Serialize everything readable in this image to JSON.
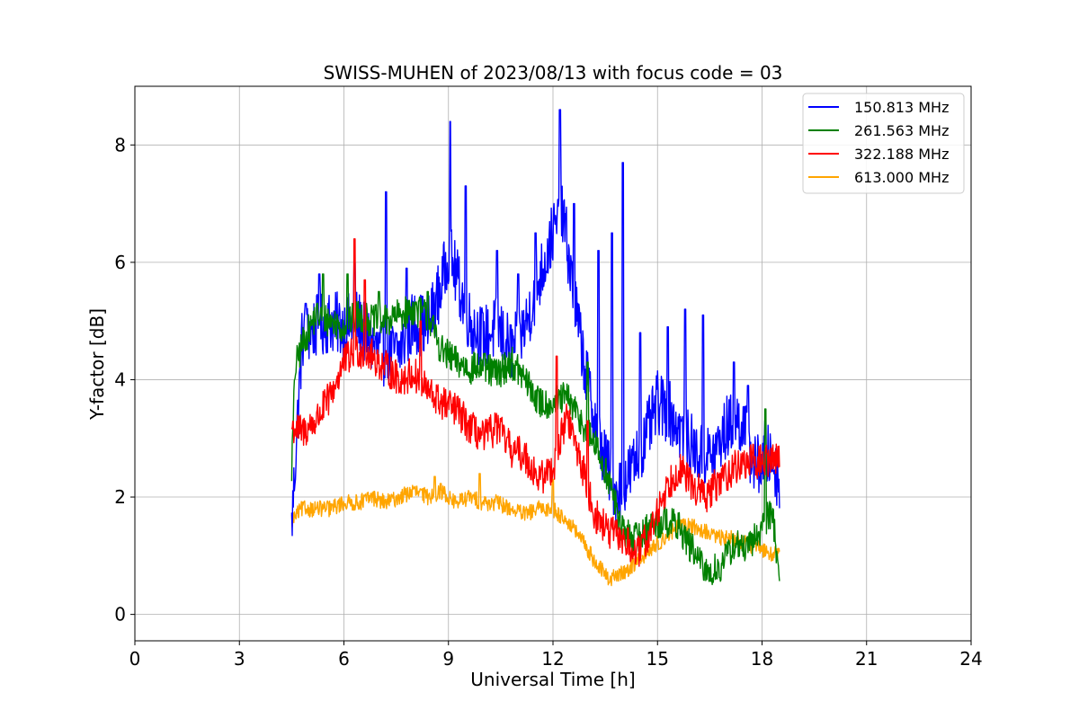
{
  "chart_data": {
    "type": "line",
    "title": "SWISS-MUHEN of 2023/08/13 with focus code = 03",
    "xlabel": "Universal Time [h]",
    "ylabel": "Y-factor [dB]",
    "xlim": [
      0,
      24
    ],
    "ylim": [
      -0.45,
      9.0
    ],
    "xticks": [
      0,
      3,
      6,
      9,
      12,
      15,
      18,
      21,
      24
    ],
    "yticks": [
      0,
      2,
      4,
      6,
      8
    ],
    "grid": true,
    "legend_position": "top-right",
    "series": [
      {
        "name": "150.813 MHz",
        "color": "#0000ff",
        "x": [
          4.5,
          4.8,
          5.2,
          5.6,
          6.0,
          6.4,
          6.8,
          7.2,
          7.6,
          8.0,
          8.4,
          8.8,
          9.0,
          9.2,
          9.4,
          9.6,
          10.0,
          10.4,
          10.8,
          11.2,
          11.6,
          12.0,
          12.3,
          12.6,
          13.0,
          13.4,
          13.8,
          14.2,
          14.6,
          15.0,
          15.4,
          15.8,
          16.2,
          16.6,
          17.0,
          17.4,
          17.8,
          18.2,
          18.5
        ],
        "y": [
          1.5,
          4.7,
          4.9,
          5.0,
          4.9,
          5.0,
          4.6,
          4.4,
          4.5,
          5.0,
          4.9,
          5.6,
          6.2,
          5.8,
          5.4,
          5.0,
          4.7,
          4.9,
          4.5,
          4.9,
          5.7,
          6.5,
          6.8,
          5.4,
          3.9,
          2.8,
          2.1,
          2.4,
          2.9,
          3.6,
          3.4,
          3.0,
          2.7,
          2.7,
          3.2,
          3.3,
          2.5,
          2.7,
          2.3
        ],
        "peaks": [
          [
            4.9,
            5.3
          ],
          [
            5.3,
            5.8
          ],
          [
            6.3,
            6.0
          ],
          [
            7.2,
            7.2
          ],
          [
            7.8,
            5.9
          ],
          [
            9.05,
            8.4
          ],
          [
            9.5,
            7.3
          ],
          [
            10.4,
            6.2
          ],
          [
            11.0,
            5.8
          ],
          [
            11.5,
            6.5
          ],
          [
            12.2,
            8.6
          ],
          [
            12.6,
            7.0
          ],
          [
            13.3,
            6.2
          ],
          [
            13.7,
            6.5
          ],
          [
            14.0,
            7.7
          ],
          [
            14.5,
            4.8
          ],
          [
            15.3,
            4.9
          ],
          [
            15.8,
            5.2
          ],
          [
            16.3,
            5.1
          ],
          [
            17.2,
            4.3
          ],
          [
            17.6,
            3.9
          ],
          [
            18.1,
            3.3
          ]
        ]
      },
      {
        "name": "261.563 MHz",
        "color": "#008000",
        "x": [
          4.5,
          4.6,
          4.8,
          5.2,
          5.6,
          6.0,
          6.4,
          6.8,
          7.2,
          7.6,
          8.0,
          8.4,
          8.8,
          9.2,
          9.6,
          10.0,
          10.4,
          10.8,
          11.2,
          11.6,
          12.0,
          12.4,
          12.8,
          13.2,
          13.6,
          14.0,
          14.4,
          14.8,
          15.2,
          15.6,
          16.0,
          16.4,
          16.8,
          17.2,
          17.6,
          18.0,
          18.3,
          18.5
        ],
        "y": [
          2.5,
          4.2,
          4.6,
          5.1,
          5.0,
          4.9,
          5.1,
          5.0,
          5.0,
          5.1,
          5.2,
          5.1,
          4.5,
          4.3,
          4.2,
          4.2,
          4.1,
          4.3,
          4.0,
          3.6,
          3.6,
          3.7,
          3.3,
          2.9,
          2.3,
          1.4,
          1.3,
          1.5,
          1.6,
          1.5,
          1.1,
          0.7,
          0.8,
          1.2,
          1.1,
          1.5,
          1.8,
          0.5
        ],
        "peaks": [
          [
            5.4,
            5.8
          ],
          [
            6.1,
            5.8
          ],
          [
            7.0,
            5.5
          ],
          [
            8.4,
            5.5
          ],
          [
            13.0,
            4.3
          ],
          [
            18.1,
            3.5
          ]
        ]
      },
      {
        "name": "322.188 MHz",
        "color": "#ff0000",
        "x": [
          4.5,
          4.8,
          5.2,
          5.6,
          6.0,
          6.4,
          6.8,
          7.2,
          7.6,
          8.0,
          8.4,
          8.8,
          9.2,
          9.6,
          10.0,
          10.4,
          10.8,
          11.2,
          11.6,
          12.0,
          12.4,
          12.8,
          13.2,
          13.6,
          14.0,
          14.4,
          14.8,
          15.2,
          15.6,
          16.0,
          16.4,
          16.8,
          17.2,
          17.6,
          18.0,
          18.5
        ],
        "y": [
          3.2,
          3.1,
          3.3,
          3.7,
          4.3,
          4.5,
          4.4,
          4.2,
          4.0,
          4.1,
          3.8,
          3.6,
          3.5,
          3.2,
          3.0,
          3.2,
          2.8,
          2.7,
          2.3,
          2.5,
          3.4,
          2.6,
          1.7,
          1.4,
          1.3,
          1.0,
          1.4,
          2.1,
          2.5,
          2.2,
          2.0,
          2.3,
          2.5,
          2.6,
          2.6,
          2.7
        ],
        "peaks": [
          [
            6.3,
            6.4
          ],
          [
            6.6,
            5.7
          ],
          [
            8.2,
            5.0
          ],
          [
            12.1,
            4.4
          ],
          [
            13.0,
            3.3
          ]
        ]
      },
      {
        "name": "613.000 MHz",
        "color": "#ffa500",
        "x": [
          4.5,
          4.8,
          5.2,
          5.6,
          6.0,
          6.4,
          6.8,
          7.2,
          7.6,
          8.0,
          8.4,
          8.8,
          9.2,
          9.6,
          10.0,
          10.4,
          10.8,
          11.2,
          11.6,
          12.0,
          12.4,
          12.8,
          13.2,
          13.6,
          14.0,
          14.4,
          14.8,
          15.2,
          15.6,
          16.0,
          16.4,
          16.8,
          17.2,
          17.6,
          18.0,
          18.5
        ],
        "y": [
          1.6,
          1.8,
          1.8,
          1.8,
          1.9,
          1.9,
          2.0,
          1.9,
          2.0,
          2.1,
          2.0,
          2.1,
          1.9,
          2.0,
          1.9,
          1.9,
          1.8,
          1.7,
          1.8,
          1.8,
          1.6,
          1.3,
          0.9,
          0.6,
          0.7,
          0.9,
          1.1,
          1.3,
          1.5,
          1.5,
          1.4,
          1.3,
          1.3,
          1.2,
          1.1,
          1.0
        ],
        "peaks": [
          [
            8.6,
            2.35
          ],
          [
            9.9,
            2.4
          ],
          [
            12.0,
            2.3
          ]
        ]
      }
    ]
  }
}
